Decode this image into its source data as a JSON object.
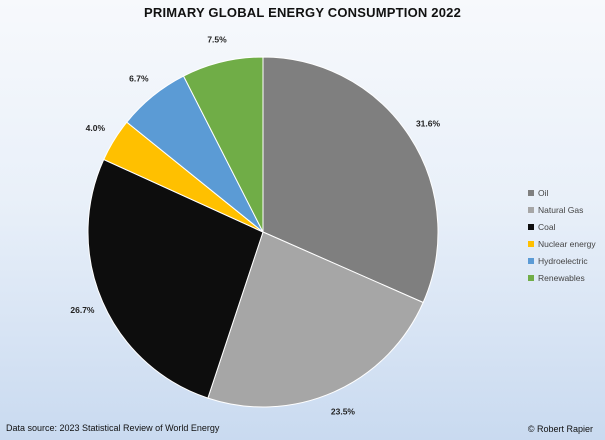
{
  "chart_data": {
    "type": "pie",
    "title": "PRIMARY GLOBAL ENERGY CONSUMPTION 2022",
    "categories": [
      "Oil",
      "Natural Gas",
      "Coal",
      "Nuclear energy",
      "Hydroelectric",
      "Renewables"
    ],
    "values": [
      31.6,
      23.5,
      26.7,
      4.0,
      6.7,
      7.5
    ],
    "labels": [
      "31.6%",
      "23.5%",
      "26.7%",
      "4.0%",
      "6.7%",
      "7.5%"
    ],
    "colors": [
      "#7f7f7f",
      "#a6a6a6",
      "#0d0d0d",
      "#ffc000",
      "#5b9bd5",
      "#70ad47"
    ],
    "legend_position": "right",
    "start_angle": "12 o'clock",
    "direction": "clockwise"
  },
  "footer": {
    "source": "Data source: 2023 Statistical Review of World Energy",
    "copyright": "© Robert Rapier"
  }
}
